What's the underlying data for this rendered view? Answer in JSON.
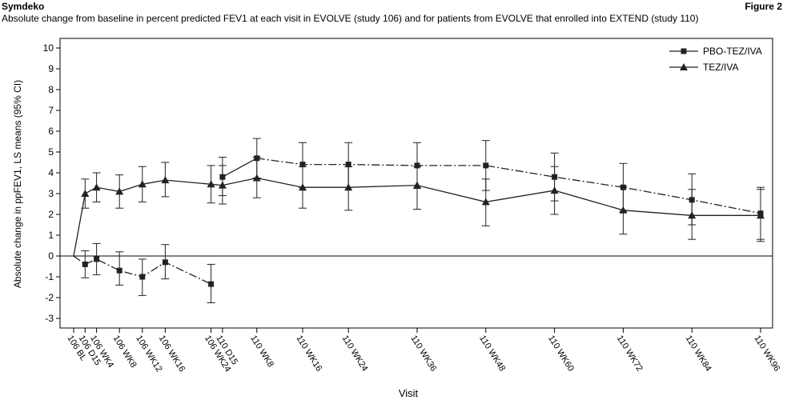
{
  "header": {
    "product": "Symdeko",
    "figure_label": "Figure 2",
    "subtitle": "Absolute change from baseline in percent predicted FEV1 at each visit in EVOLVE (study 106) and for patients from EVOLVE that enrolled into EXTEND (study 110)"
  },
  "chart_data": {
    "type": "line",
    "xlabel": "Visit",
    "ylabel": "Absolute change in ppFEV1, LS means (95% CI)",
    "ylim": [
      -3,
      10
    ],
    "yticks": [
      -3,
      -2,
      -1,
      0,
      1,
      2,
      3,
      4,
      5,
      6,
      7,
      8,
      9,
      10
    ],
    "grid": false,
    "legend_position": "top-right",
    "categories": [
      "106 BL",
      "106 D15",
      "106 WK4",
      "106 WK8",
      "106 WK12",
      "106 WK16",
      "106 WK24",
      "110 D15",
      "110 WK8",
      "110 WK16",
      "110 WK24",
      "110 WK36",
      "110 WK48",
      "110 WK60",
      "110 WK72",
      "110 WK84",
      "110 WK96"
    ],
    "x_weeks": [
      0,
      2,
      4,
      8,
      12,
      16,
      24,
      26,
      32,
      40,
      48,
      60,
      72,
      84,
      96,
      108,
      120
    ],
    "series": [
      {
        "name": "PBO-TEZ/IVA",
        "marker": "square",
        "color": "#222222",
        "segments": [
          {
            "style": "dashdot",
            "points": [
              {
                "x": "106 BL",
                "y": 0
              },
              {
                "x": "106 D15",
                "y": -0.4,
                "low": -1.05,
                "high": 0.25
              },
              {
                "x": "106 WK4",
                "y": -0.15,
                "low": -0.9,
                "high": 0.6
              },
              {
                "x": "106 WK8",
                "y": -0.7,
                "low": -1.4,
                "high": 0.2
              },
              {
                "x": "106 WK12",
                "y": -1.0,
                "low": -1.9,
                "high": -0.15
              },
              {
                "x": "106 WK16",
                "y": -0.3,
                "low": -1.1,
                "high": 0.55
              },
              {
                "x": "106 WK24",
                "y": -1.35,
                "low": -2.25,
                "high": -0.4
              }
            ]
          },
          {
            "style": "solid",
            "points": [
              {
                "x": "110 D15",
                "y": 3.8,
                "low": 2.9,
                "high": 4.75
              },
              {
                "x": "110 WK8",
                "y": 4.7,
                "low": 3.75,
                "high": 5.65
              }
            ]
          },
          {
            "style": "dashdot",
            "points": [
              {
                "x": "110 WK8",
                "y": 4.7
              },
              {
                "x": "110 WK16",
                "y": 4.4,
                "low": 3.3,
                "high": 5.45
              },
              {
                "x": "110 WK24",
                "y": 4.4,
                "low": 3.3,
                "high": 5.45
              },
              {
                "x": "110 WK36",
                "y": 4.35,
                "low": 3.25,
                "high": 5.45
              },
              {
                "x": "110 WK48",
                "y": 4.35,
                "low": 3.15,
                "high": 5.55
              },
              {
                "x": "110 WK60",
                "y": 3.8,
                "low": 2.65,
                "high": 4.95
              },
              {
                "x": "110 WK72",
                "y": 3.3,
                "low": 2.15,
                "high": 4.45
              },
              {
                "x": "110 WK84",
                "y": 2.7,
                "low": 1.5,
                "high": 3.95
              },
              {
                "x": "110 WK96",
                "y": 2.05,
                "low": 0.8,
                "high": 3.3
              }
            ]
          }
        ]
      },
      {
        "name": "TEZ/IVA",
        "marker": "triangle",
        "color": "#222222",
        "segments": [
          {
            "style": "solid",
            "points": [
              {
                "x": "106 BL",
                "y": 0
              },
              {
                "x": "106 D15",
                "y": 3.0,
                "low": 2.3,
                "high": 3.7
              },
              {
                "x": "106 WK4",
                "y": 3.3,
                "low": 2.6,
                "high": 4.0
              },
              {
                "x": "106 WK8",
                "y": 3.1,
                "low": 2.3,
                "high": 3.9
              },
              {
                "x": "106 WK12",
                "y": 3.45,
                "low": 2.6,
                "high": 4.3
              },
              {
                "x": "106 WK16",
                "y": 3.65,
                "low": 2.85,
                "high": 4.5
              },
              {
                "x": "106 WK24",
                "y": 3.45,
                "low": 2.55,
                "high": 4.35
              },
              {
                "x": "110 D15",
                "y": 3.4,
                "low": 2.5,
                "high": 4.35
              },
              {
                "x": "110 WK8",
                "y": 3.75,
                "low": 2.8,
                "high": 4.75
              },
              {
                "x": "110 WK16",
                "y": 3.3,
                "low": 2.3,
                "high": 4.3
              },
              {
                "x": "110 WK24",
                "y": 3.3,
                "low": 2.2,
                "high": 4.3
              },
              {
                "x": "110 WK36",
                "y": 3.4,
                "low": 2.25,
                "high": 4.3
              },
              {
                "x": "110 WK48",
                "y": 2.6,
                "low": 1.45,
                "high": 3.7
              },
              {
                "x": "110 WK60",
                "y": 3.15,
                "low": 2.0,
                "high": 4.3
              },
              {
                "x": "110 WK72",
                "y": 2.2,
                "low": 1.05,
                "high": 3.35
              },
              {
                "x": "110 WK84",
                "y": 1.95,
                "low": 0.8,
                "high": 3.2
              },
              {
                "x": "110 WK96",
                "y": 1.95,
                "low": 0.7,
                "high": 3.2
              }
            ]
          }
        ]
      }
    ]
  }
}
